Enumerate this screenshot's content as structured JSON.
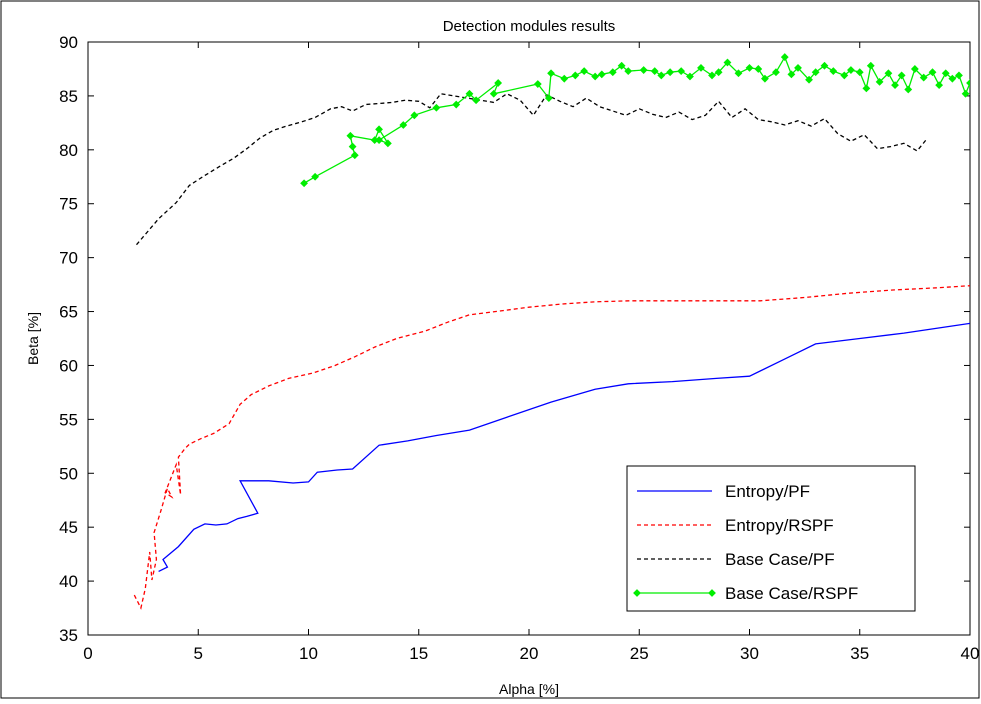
{
  "chart_data": {
    "type": "line",
    "title": "Detection modules results",
    "xlabel": "Alpha [%]",
    "ylabel": "Beta [%]",
    "xlim": [
      0,
      40
    ],
    "ylim": [
      35,
      90
    ],
    "xticks": [
      0,
      5,
      10,
      15,
      20,
      25,
      30,
      35,
      40
    ],
    "yticks": [
      35,
      40,
      45,
      50,
      55,
      60,
      65,
      70,
      75,
      80,
      85,
      90
    ],
    "grid": false,
    "legend_position": "bottom-right",
    "series": [
      {
        "name": "Entropy/PF",
        "color": "#0000ff",
        "style": "solid",
        "marker": "none",
        "x": [
          3.2,
          3.6,
          3.4,
          4.1,
          4.8,
          5.3,
          5.8,
          6.3,
          6.8,
          7.2,
          7.7,
          6.9,
          8.2,
          9.3,
          10.0,
          10.4,
          11.3,
          12.0,
          13.2,
          14.5,
          15.8,
          17.3,
          19.0,
          21.0,
          23.0,
          24.5,
          26.5,
          28.5,
          30.0,
          31.5,
          33.0,
          35.0,
          37.0,
          39.0,
          40.0
        ],
        "y": [
          40.9,
          41.3,
          42.0,
          43.2,
          44.8,
          45.3,
          45.2,
          45.3,
          45.8,
          46.0,
          46.3,
          49.3,
          49.3,
          49.1,
          49.2,
          50.1,
          50.3,
          50.4,
          52.6,
          53.0,
          53.5,
          54.0,
          55.2,
          56.6,
          57.8,
          58.3,
          58.5,
          58.8,
          59.0,
          60.5,
          62.0,
          62.5,
          63.0,
          63.6,
          63.9
        ]
      },
      {
        "name": "Entropy/RSPF",
        "color": "#ff0000",
        "style": "dashed",
        "marker": "none",
        "x": [
          2.1,
          2.4,
          2.6,
          2.8,
          2.9,
          3.1,
          3.0,
          3.3,
          3.6,
          3.8,
          3.5,
          4.0,
          4.2,
          4.1,
          4.4,
          4.6,
          5.1,
          5.7,
          6.4,
          6.9,
          7.4,
          8.2,
          9.1,
          10.2,
          11.2,
          12.1,
          13.0,
          14.0,
          15.3,
          16.3,
          17.3,
          18.5,
          20.0,
          21.5,
          23.0,
          24.6,
          26.5,
          28.5,
          30.5,
          32.5,
          34.5,
          36.5,
          38.5,
          40.0
        ],
        "y": [
          38.7,
          37.5,
          39.3,
          42.7,
          40.1,
          42.0,
          44.5,
          46.5,
          48.6,
          47.8,
          48.2,
          50.8,
          48.0,
          51.5,
          52.3,
          52.7,
          53.2,
          53.7,
          54.6,
          56.4,
          57.3,
          58.1,
          58.8,
          59.3,
          60.0,
          60.8,
          61.7,
          62.5,
          63.2,
          64.0,
          64.7,
          65.0,
          65.4,
          65.7,
          65.9,
          66.0,
          66.0,
          66.0,
          66.0,
          66.3,
          66.7,
          67.0,
          67.2,
          67.4
        ]
      },
      {
        "name": "Base Case/PF",
        "color": "#000000",
        "style": "dashed",
        "marker": "none",
        "x": [
          2.2,
          3.2,
          4.0,
          4.6,
          5.2,
          6.0,
          6.6,
          7.2,
          7.8,
          8.4,
          9.0,
          9.7,
          10.3,
          11.0,
          11.5,
          12.0,
          12.6,
          13.2,
          13.8,
          14.4,
          15.0,
          15.5,
          16.0,
          16.6,
          17.2,
          17.8,
          18.4,
          19.0,
          19.6,
          20.2,
          20.8,
          21.4,
          22.0,
          22.6,
          23.2,
          23.8,
          24.4,
          25.0,
          25.6,
          26.2,
          26.8,
          27.4,
          28.0,
          28.6,
          29.2,
          29.8,
          30.4,
          31.0,
          31.6,
          32.2,
          32.8,
          33.4,
          34.0,
          34.6,
          35.2,
          35.8,
          36.4,
          37.0,
          37.6,
          38.0
        ],
        "y": [
          71.2,
          73.6,
          75.1,
          76.7,
          77.5,
          78.5,
          79.2,
          80.1,
          81.1,
          81.8,
          82.2,
          82.6,
          83.0,
          83.8,
          84.0,
          83.6,
          84.2,
          84.3,
          84.4,
          84.6,
          84.5,
          83.9,
          85.2,
          85.0,
          84.8,
          84.6,
          84.4,
          85.2,
          84.6,
          83.2,
          85.1,
          84.5,
          84.0,
          84.8,
          84.0,
          83.6,
          83.2,
          83.8,
          83.3,
          83.0,
          83.5,
          82.8,
          83.2,
          84.5,
          83.0,
          83.8,
          82.8,
          82.6,
          82.3,
          82.7,
          82.2,
          82.9,
          81.5,
          80.8,
          81.4,
          80.1,
          80.3,
          80.6,
          79.9,
          80.9
        ]
      },
      {
        "name": "Base Case/RSPF",
        "color": "#00ee00",
        "style": "solid",
        "marker": "diamond",
        "x": [
          9.8,
          10.3,
          12.1,
          12.0,
          11.9,
          13.0,
          13.2,
          13.6,
          13.2,
          14.3,
          14.8,
          15.8,
          16.7,
          17.3,
          17.6,
          18.6,
          18.4,
          20.4,
          20.9,
          21.0,
          21.6,
          22.1,
          22.5,
          23.0,
          23.3,
          23.8,
          24.2,
          24.5,
          25.2,
          25.7,
          26.0,
          26.4,
          26.9,
          27.3,
          27.8,
          28.3,
          28.6,
          29.0,
          29.5,
          30.0,
          30.4,
          30.7,
          31.2,
          31.6,
          31.9,
          32.2,
          32.7,
          33.0,
          33.4,
          33.8,
          34.3,
          34.6,
          35.0,
          35.3,
          35.5,
          35.9,
          36.3,
          36.6,
          36.9,
          37.2,
          37.5,
          37.9,
          38.3,
          38.6,
          38.9,
          39.2,
          39.5,
          39.8,
          40.0
        ],
        "y": [
          76.9,
          77.5,
          79.5,
          80.3,
          81.3,
          80.9,
          81.9,
          80.6,
          80.9,
          82.3,
          83.2,
          83.9,
          84.2,
          85.2,
          84.6,
          86.2,
          85.2,
          86.1,
          84.8,
          87.1,
          86.6,
          86.9,
          87.3,
          86.8,
          87.0,
          87.2,
          87.8,
          87.3,
          87.4,
          87.3,
          86.9,
          87.2,
          87.3,
          86.8,
          87.6,
          86.9,
          87.2,
          88.1,
          87.1,
          87.6,
          87.5,
          86.6,
          87.2,
          88.6,
          87.0,
          87.6,
          86.5,
          87.2,
          87.8,
          87.3,
          86.9,
          87.4,
          87.2,
          85.7,
          87.8,
          86.3,
          87.1,
          86.0,
          86.9,
          85.6,
          87.5,
          86.7,
          87.2,
          86.0,
          87.1,
          86.6,
          86.9,
          85.2,
          86.2
        ]
      }
    ]
  }
}
